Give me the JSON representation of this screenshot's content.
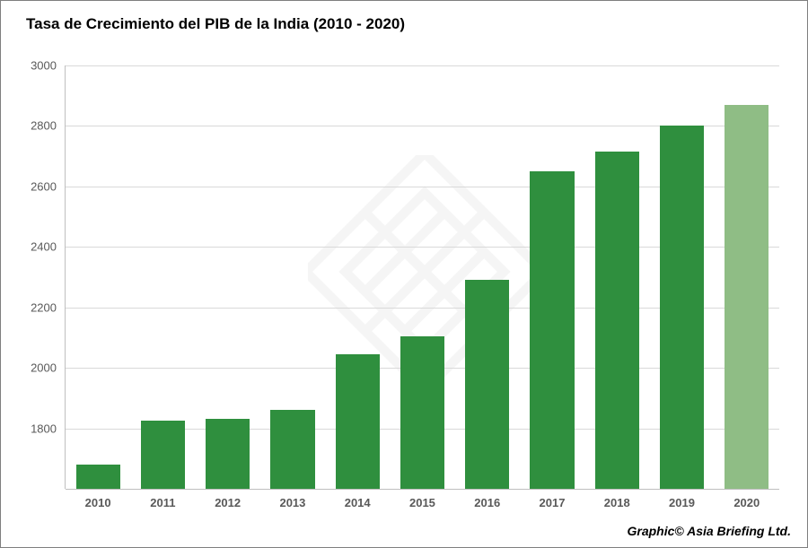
{
  "chart": {
    "type": "bar",
    "title": "Tasa de Crecimiento del PIB de la India (2010 - 2020)",
    "title_fontsize": 17,
    "title_fontweight": "700",
    "title_color": "#000000",
    "categories": [
      "2010",
      "2011",
      "2012",
      "2013",
      "2014",
      "2015",
      "2016",
      "2017",
      "2018",
      "2019",
      "2020"
    ],
    "values": [
      1680,
      1825,
      1830,
      1860,
      2045,
      2105,
      2290,
      2650,
      2715,
      2800,
      2870
    ],
    "bar_colors": [
      "#2f8f3e",
      "#2f8f3e",
      "#2f8f3e",
      "#2f8f3e",
      "#2f8f3e",
      "#2f8f3e",
      "#2f8f3e",
      "#2f8f3e",
      "#2f8f3e",
      "#2f8f3e",
      "#8fbd85"
    ],
    "ymin": 1600,
    "ymax": 3000,
    "yticks": [
      1800,
      2000,
      2200,
      2400,
      2600,
      2800,
      3000
    ],
    "grid_color": "#d9d9d9",
    "axis_color": "#bfbfbf",
    "tick_label_color": "#595959",
    "tick_fontsize": 13,
    "xlabel_fontweight": "700",
    "background_color": "#ffffff",
    "bar_width_ratio": 0.68,
    "frame_border_color": "#7f7f7f"
  },
  "attribution": "Graphic© Asia Briefing Ltd.",
  "watermark": {
    "present": true,
    "shape": "square-rotated-logo",
    "color": "#d0d0d0",
    "opacity": 0.07
  }
}
